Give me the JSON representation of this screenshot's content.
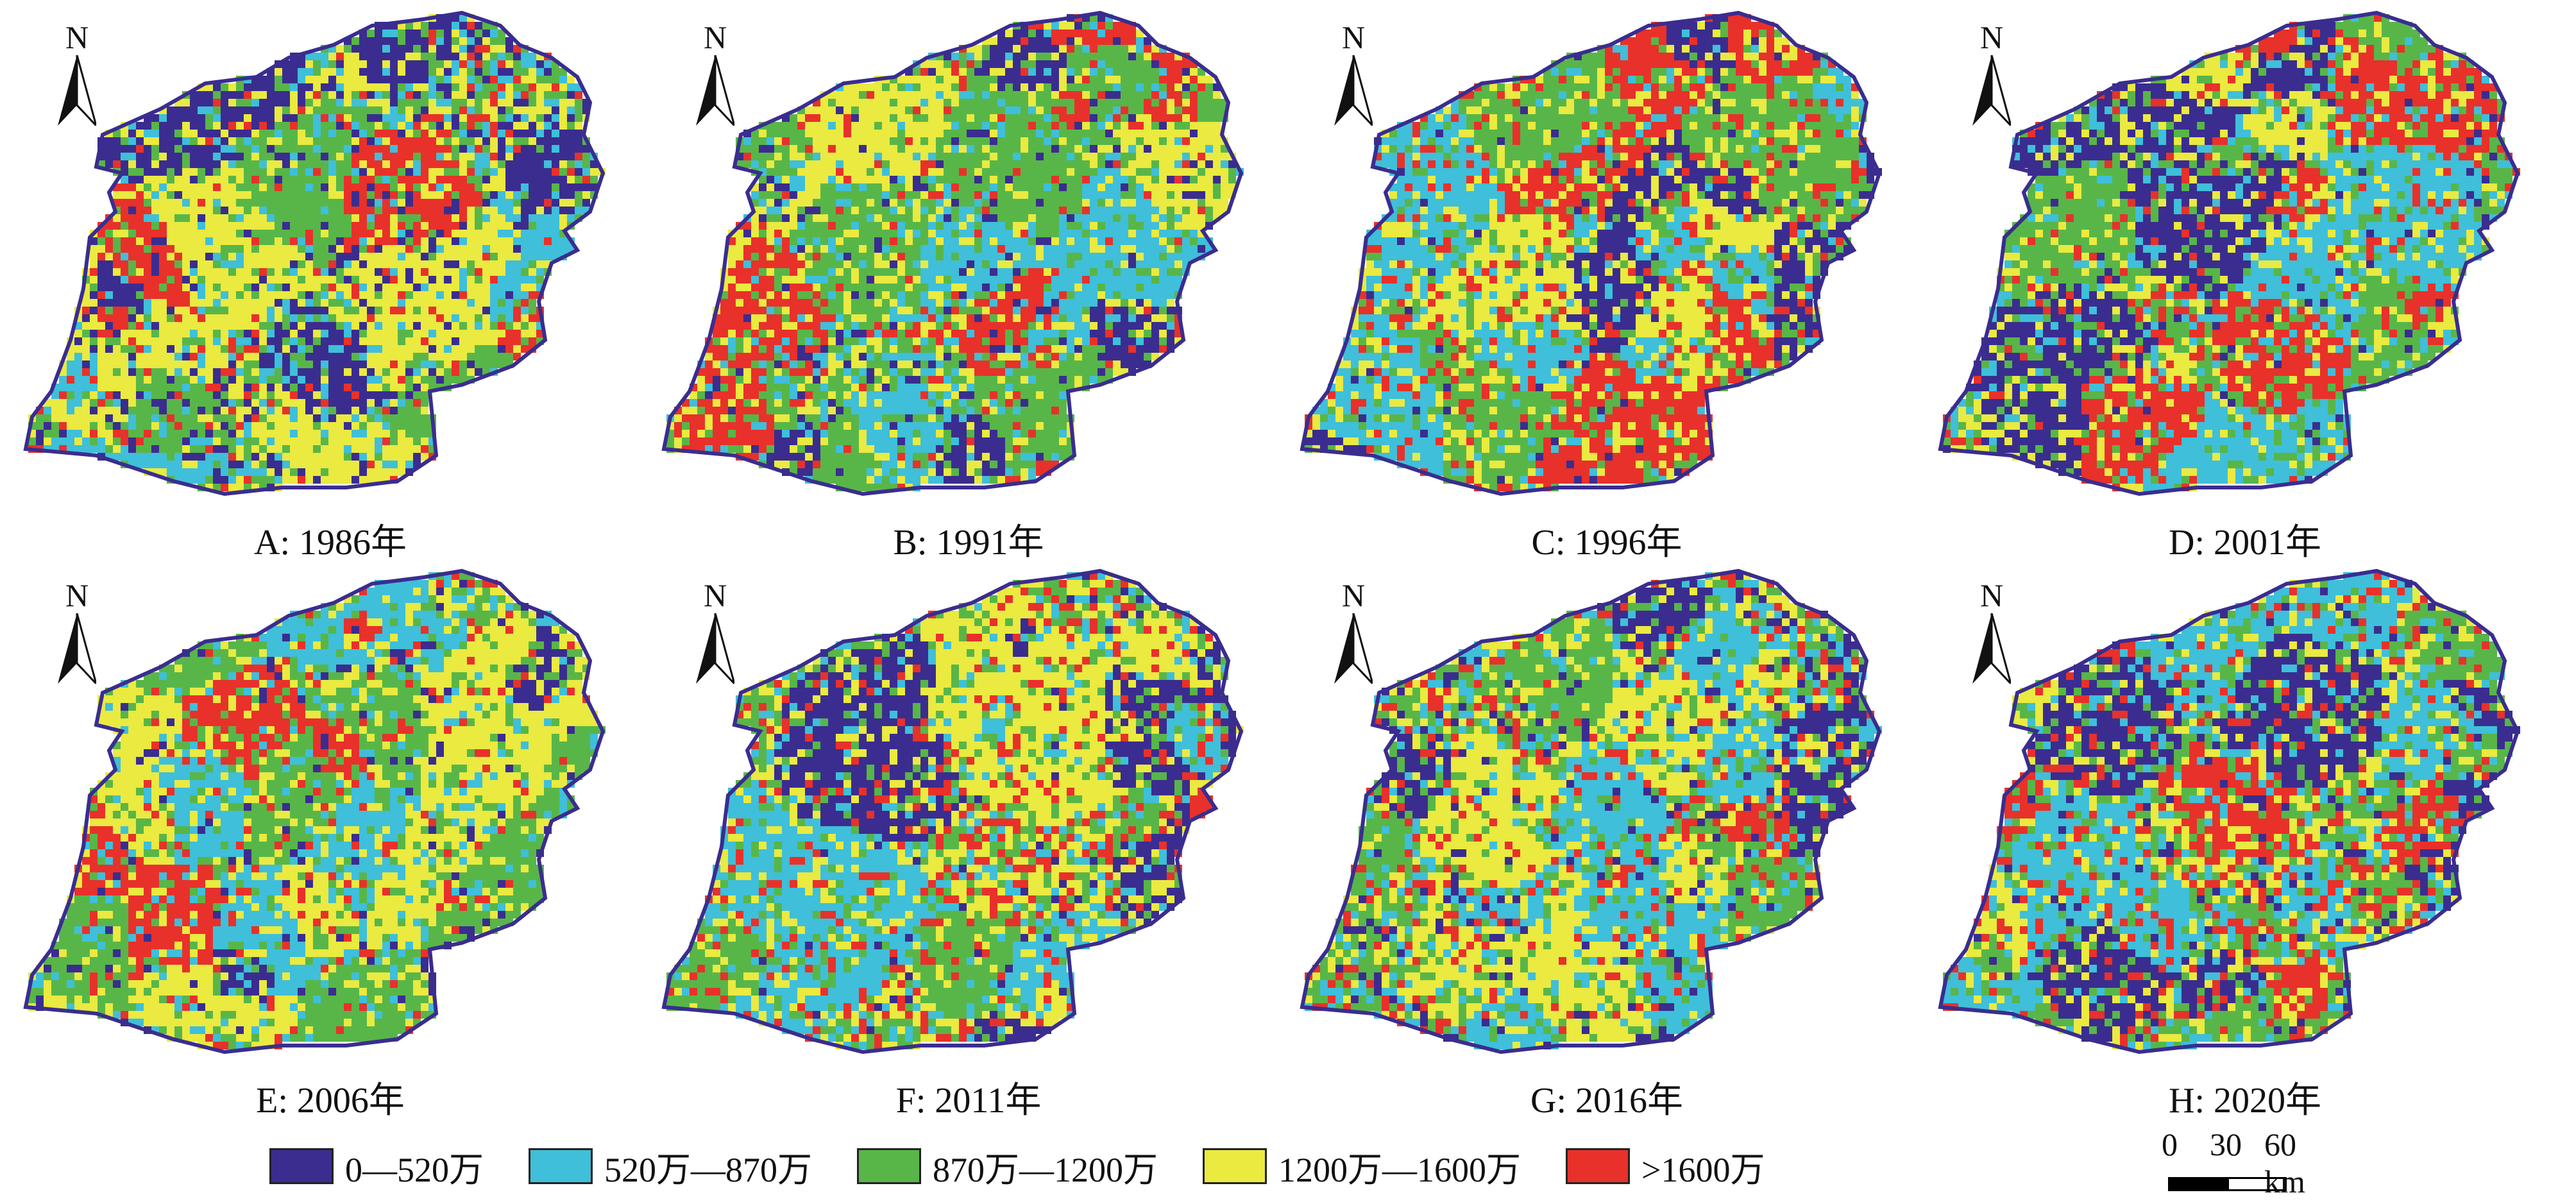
{
  "north_label": "N",
  "panels": [
    {
      "caption": "A: 1986年",
      "dominant": [
        "#eaea40",
        "#58b648",
        "#3fbfd9",
        "#3a2d8f",
        "#e8312a"
      ],
      "weights": [
        0.26,
        0.28,
        0.2,
        0.17,
        0.09
      ]
    },
    {
      "caption": "B: 1991年",
      "dominant": [
        "#eaea40",
        "#58b648",
        "#3fbfd9",
        "#3a2d8f",
        "#e8312a"
      ],
      "weights": [
        0.3,
        0.3,
        0.2,
        0.1,
        0.1
      ]
    },
    {
      "caption": "C: 1996年",
      "dominant": [
        "#eaea40",
        "#58b648",
        "#3fbfd9",
        "#3a2d8f",
        "#e8312a"
      ],
      "weights": [
        0.34,
        0.26,
        0.12,
        0.06,
        0.22
      ]
    },
    {
      "caption": "D: 2001年",
      "dominant": [
        "#eaea40",
        "#58b648",
        "#3fbfd9",
        "#3a2d8f",
        "#e8312a"
      ],
      "weights": [
        0.3,
        0.32,
        0.18,
        0.06,
        0.14
      ]
    },
    {
      "caption": "E: 2006年",
      "dominant": [
        "#eaea40",
        "#58b648",
        "#3fbfd9",
        "#3a2d8f",
        "#e8312a"
      ],
      "weights": [
        0.3,
        0.3,
        0.2,
        0.07,
        0.13
      ]
    },
    {
      "caption": "F: 2011年",
      "dominant": [
        "#eaea40",
        "#58b648",
        "#3fbfd9",
        "#3a2d8f",
        "#e8312a"
      ],
      "weights": [
        0.34,
        0.26,
        0.16,
        0.04,
        0.2
      ]
    },
    {
      "caption": "G: 2016年",
      "dominant": [
        "#eaea40",
        "#58b648",
        "#3fbfd9",
        "#3a2d8f",
        "#e8312a"
      ],
      "weights": [
        0.24,
        0.3,
        0.2,
        0.1,
        0.16
      ]
    },
    {
      "caption": "H: 2020年",
      "dominant": [
        "#eaea40",
        "#58b648",
        "#3fbfd9",
        "#3a2d8f",
        "#e8312a"
      ],
      "weights": [
        0.24,
        0.28,
        0.18,
        0.08,
        0.22
      ]
    }
  ],
  "legend": [
    {
      "label": "0—520万",
      "color": "#3a2d8f"
    },
    {
      "label": "520万—870万",
      "color": "#3fbfd9"
    },
    {
      "label": "870万—1200万",
      "color": "#58b648"
    },
    {
      "label": "1200万—1600万",
      "color": "#eaea40"
    },
    {
      "label": ">1600万",
      "color": "#e8312a"
    }
  ],
  "scale": {
    "ticks": [
      "0",
      "30",
      "60 km"
    ]
  }
}
